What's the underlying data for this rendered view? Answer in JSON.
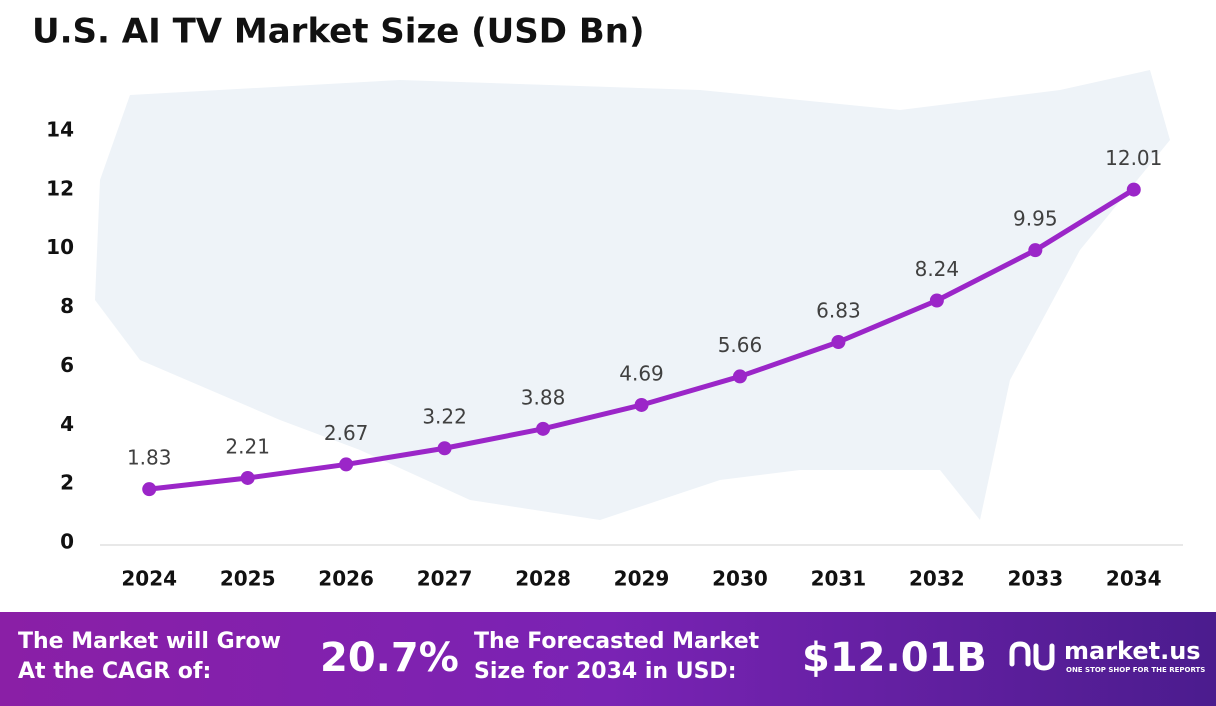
{
  "chart_data": {
    "type": "line",
    "title": "U.S. AI TV Market Size (USD Bn)",
    "categories": [
      "2024",
      "2025",
      "2026",
      "2027",
      "2028",
      "2029",
      "2030",
      "2031",
      "2032",
      "2033",
      "2034"
    ],
    "values": [
      1.83,
      2.21,
      2.67,
      3.22,
      3.88,
      4.69,
      5.66,
      6.83,
      8.24,
      9.95,
      12.01
    ],
    "color": "#9b26c8",
    "ylim": [
      0,
      14
    ],
    "yticks": [
      0,
      2,
      4,
      6,
      8,
      10,
      12,
      14
    ],
    "grid": false
  },
  "footer": {
    "cagr_text": [
      "The Market will Grow",
      "At the CAGR of:"
    ],
    "cagr_value": "20.7%",
    "forecast_text": [
      "The Forecasted Market",
      "Size for 2034 in USD:"
    ],
    "forecast_value": "$12.01B",
    "brand": "market.us",
    "tagline": "ONE STOP SHOP FOR THE REPORTS"
  }
}
